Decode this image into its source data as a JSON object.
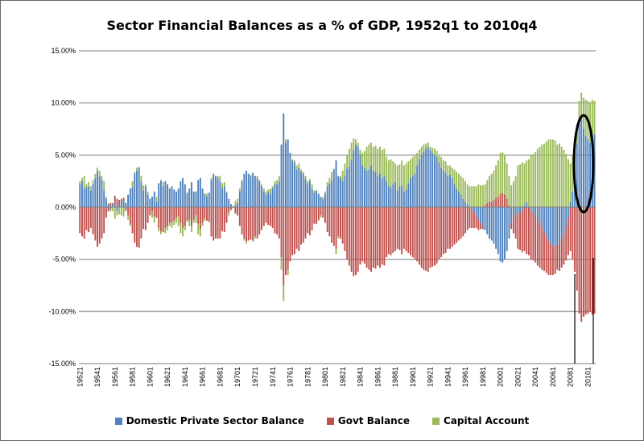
{
  "chart_data": {
    "type": "bar",
    "stacked": true,
    "title": "Sector Financial Balances as a % of GDP, 1952q1 to 2010q4",
    "xlabel": "",
    "ylabel": "",
    "ylim": [
      -15,
      15
    ],
    "y_ticks": [
      "15.00%",
      "10.00%",
      "5.00%",
      "0.00%",
      "-5.00%",
      "-10.00%",
      "-15.00%"
    ],
    "y_tick_values": [
      15,
      10,
      5,
      0,
      -5,
      -10,
      -15
    ],
    "grid": true,
    "legend_position": "bottom",
    "start_period": "1952q1",
    "x_tick_labels": [
      "19521",
      "19541",
      "19561",
      "19581",
      "19601",
      "19621",
      "19641",
      "19661",
      "19681",
      "19701",
      "19721",
      "19741",
      "19761",
      "19781",
      "19801",
      "19821",
      "19841",
      "19861",
      "19881",
      "19901",
      "19921",
      "19941",
      "19961",
      "19981",
      "20001",
      "20021",
      "20041",
      "20061",
      "20081",
      "20101"
    ],
    "series": [
      {
        "name": "Domestic Private Sector Balance",
        "color": "#4f81bd",
        "values": [
          2.2,
          2.5,
          1.8,
          1.9,
          2.0,
          1.6,
          2.2,
          2.8,
          3.5,
          3.0,
          2.6,
          1.6,
          0.8,
          0.3,
          -0.2,
          0.2,
          0.5,
          -0.4,
          0.2,
          0.6,
          0.7,
          0.4,
          1.2,
          1.8,
          1.9,
          3.2,
          3.5,
          3.8,
          2.5,
          1.6,
          2.0,
          1.2,
          0.8,
          1.0,
          1.5,
          0.5,
          2.3,
          2.6,
          2.0,
          2.5,
          2.2,
          1.8,
          2.0,
          1.7,
          1.5,
          1.8,
          2.5,
          2.8,
          2.2,
          1.4,
          1.8,
          2.4,
          1.5,
          1.5,
          2.6,
          2.8,
          1.8,
          1.3,
          1.0,
          1.4,
          2.6,
          3.2,
          3.0,
          2.8,
          2.5,
          1.8,
          2.0,
          1.4,
          0.8,
          0.3,
          0.1,
          0.2,
          0.4,
          1.5,
          2.5,
          3.2,
          3.5,
          3.2,
          3.0,
          3.3,
          3.0,
          2.8,
          2.5,
          2.0,
          1.5,
          1.2,
          1.5,
          1.3,
          1.8,
          2.2,
          2.2,
          2.5,
          6.0,
          9.0,
          6.2,
          6.5,
          5.2,
          4.5,
          4.3,
          3.6,
          3.8,
          3.4,
          3.2,
          2.7,
          2.2,
          2.5,
          1.8,
          1.4,
          1.6,
          1.3,
          1.0,
          0.8,
          1.3,
          2.0,
          2.3,
          2.6,
          3.6,
          4.5,
          3.0,
          2.8,
          2.5,
          3.0,
          3.7,
          3.9,
          4.5,
          5.5,
          6.0,
          5.8,
          5.0,
          4.0,
          3.8,
          3.5,
          3.6,
          4.0,
          3.5,
          3.4,
          3.0,
          3.2,
          2.8,
          3.0,
          2.5,
          2.0,
          1.9,
          2.2,
          2.4,
          1.6,
          2.0,
          2.1,
          1.5,
          1.7,
          2.3,
          2.8,
          3.0,
          3.2,
          4.0,
          4.6,
          5.0,
          5.3,
          5.6,
          5.8,
          5.5,
          5.2,
          5.0,
          4.8,
          4.3,
          3.8,
          3.5,
          3.3,
          3.0,
          3.1,
          2.8,
          2.2,
          1.8,
          1.5,
          1.2,
          0.8,
          0.5,
          0.3,
          0.0,
          -0.2,
          -0.5,
          -0.8,
          -1.2,
          -1.5,
          -1.8,
          -2.2,
          -2.6,
          -3.0,
          -3.2,
          -3.5,
          -4.0,
          -4.5,
          -5.2,
          -5.3,
          -5.0,
          -4.2,
          -3.0,
          -1.6,
          -1.0,
          -0.5,
          -0.8,
          -0.5,
          -0.3,
          0.2,
          0.5,
          0.1,
          -0.2,
          -0.5,
          -0.8,
          -1.2,
          -1.5,
          -2.0,
          -2.4,
          -2.8,
          -3.2,
          -3.5,
          -3.7,
          -3.8,
          -3.6,
          -3.5,
          -3.0,
          -2.5,
          -1.8,
          -1.0,
          0.5,
          1.5,
          3.5,
          6.0,
          8.5,
          8.8,
          7.5,
          6.8,
          6.5,
          6.2,
          6.8,
          7.0
        ]
      },
      {
        "name": "Govt Balance",
        "color": "#c0504d",
        "values": [
          -2.5,
          -2.8,
          -3.0,
          -2.2,
          -2.4,
          -2.0,
          -2.6,
          -3.2,
          -3.8,
          -3.5,
          -3.0,
          -2.5,
          -1.0,
          -0.4,
          0.4,
          0.2,
          0.6,
          0.8,
          0.5,
          0.2,
          0.2,
          -0.3,
          -0.8,
          -1.6,
          -2.5,
          -3.4,
          -3.8,
          -3.9,
          -3.0,
          -2.1,
          -2.2,
          -1.5,
          -0.8,
          -0.4,
          -0.9,
          -1.0,
          -2.0,
          -2.3,
          -2.4,
          -2.0,
          -1.8,
          -1.5,
          -1.5,
          -1.3,
          -1.0,
          -0.9,
          -1.5,
          -2.0,
          -1.8,
          -1.3,
          -1.2,
          -1.8,
          -1.2,
          -0.8,
          -1.6,
          -2.1,
          -1.5,
          -1.1,
          -1.3,
          -1.4,
          -2.8,
          -3.2,
          -3.0,
          -3.0,
          -3.0,
          -2.3,
          -2.4,
          -1.5,
          -0.5,
          -0.2,
          0.0,
          -0.6,
          -0.8,
          -1.8,
          -2.6,
          -3.0,
          -3.3,
          -3.2,
          -3.1,
          -3.2,
          -2.8,
          -3.0,
          -2.6,
          -2.2,
          -1.8,
          -1.5,
          -1.7,
          -1.8,
          -2.0,
          -2.5,
          -2.6,
          -3.0,
          -4.8,
          -7.5,
          -6.5,
          -6.0,
          -5.2,
          -4.6,
          -4.5,
          -4.0,
          -4.2,
          -3.6,
          -3.4,
          -3.0,
          -2.5,
          -2.7,
          -2.2,
          -1.6,
          -1.6,
          -1.2,
          -0.8,
          -1.0,
          -1.5,
          -2.4,
          -2.8,
          -3.4,
          -3.7,
          -4.0,
          -2.8,
          -3.0,
          -3.5,
          -4.2,
          -5.0,
          -5.6,
          -6.2,
          -6.6,
          -6.5,
          -6.2,
          -5.5,
          -5.2,
          -5.4,
          -5.8,
          -6.0,
          -6.2,
          -5.8,
          -5.9,
          -5.6,
          -5.8,
          -5.5,
          -5.6,
          -4.8,
          -4.5,
          -4.6,
          -4.4,
          -4.2,
          -4.0,
          -4.1,
          -4.5,
          -4.0,
          -4.2,
          -4.4,
          -4.6,
          -4.8,
          -5.0,
          -5.2,
          -5.5,
          -5.8,
          -6.0,
          -6.1,
          -6.2,
          -5.8,
          -5.7,
          -5.6,
          -5.4,
          -5.0,
          -4.8,
          -4.5,
          -4.4,
          -4.0,
          -4.0,
          -3.8,
          -3.6,
          -3.4,
          -3.2,
          -3.0,
          -2.8,
          -2.5,
          -2.2,
          -2.0,
          -1.8,
          -1.5,
          -1.2,
          -1.0,
          -0.6,
          -0.3,
          0.2,
          0.4,
          0.5,
          0.5,
          0.7,
          0.9,
          1.0,
          1.3,
          1.4,
          1.2,
          0.8,
          0.2,
          -0.5,
          -1.5,
          -2.5,
          -3.2,
          -3.6,
          -4.0,
          -4.2,
          -4.5,
          -4.6,
          -4.8,
          -4.6,
          -4.5,
          -4.4,
          -4.3,
          -4.0,
          -3.7,
          -3.5,
          -3.3,
          -3.0,
          -2.8,
          -2.6,
          -2.4,
          -2.6,
          -2.8,
          -3.0,
          -3.3,
          -3.6,
          -4.2,
          -5.0,
          -6.2,
          -8.0,
          -10.2,
          -11.0,
          -10.5,
          -10.3,
          -10.2,
          -10.0,
          -10.3,
          -10.2
        ]
      },
      {
        "name": "Capital Account",
        "color": "#9bbb59",
        "values": [
          0.3,
          0.3,
          1.2,
          0.3,
          0.4,
          0.4,
          0.4,
          0.4,
          0.3,
          0.5,
          0.4,
          0.9,
          0.2,
          0.1,
          -0.2,
          -0.4,
          -1.1,
          -0.4,
          -0.7,
          -0.8,
          -0.9,
          -0.1,
          -0.4,
          -0.2,
          0.6,
          0.2,
          0.3,
          0.1,
          0.5,
          0.5,
          0.2,
          0.3,
          0.0,
          -0.6,
          -0.6,
          0.5,
          -0.3,
          -0.3,
          0.4,
          -0.5,
          -0.4,
          -0.3,
          -0.5,
          -0.4,
          -0.5,
          -0.9,
          -1.0,
          -0.8,
          -0.4,
          -0.1,
          -0.6,
          -0.6,
          -0.3,
          -0.7,
          -1.0,
          -0.7,
          -0.3,
          -0.2,
          0.3,
          0.0,
          0.2,
          0.0,
          0.0,
          0.2,
          0.5,
          0.5,
          0.4,
          0.1,
          -0.3,
          -0.1,
          -0.1,
          0.4,
          0.4,
          0.3,
          0.1,
          -0.2,
          -0.2,
          0.0,
          0.1,
          -0.1,
          -0.2,
          0.2,
          0.1,
          0.2,
          0.3,
          0.3,
          0.2,
          0.5,
          0.2,
          0.3,
          0.4,
          0.5,
          -1.2,
          -1.5,
          0.3,
          -0.5,
          0.0,
          0.1,
          0.2,
          0.4,
          0.4,
          0.2,
          0.2,
          0.3,
          0.3,
          0.2,
          0.4,
          0.2,
          0.0,
          -0.1,
          -0.2,
          0.2,
          0.2,
          0.4,
          0.5,
          0.8,
          0.1,
          -0.5,
          -0.2,
          0.2,
          1.0,
          1.2,
          1.3,
          1.7,
          1.7,
          1.1,
          0.5,
          0.4,
          0.5,
          1.2,
          1.6,
          2.3,
          2.4,
          2.2,
          2.3,
          2.5,
          2.6,
          2.6,
          2.7,
          2.6,
          2.3,
          2.5,
          2.7,
          2.2,
          1.8,
          2.4,
          2.1,
          2.4,
          2.5,
          2.5,
          2.1,
          1.8,
          1.8,
          1.8,
          1.2,
          0.9,
          0.8,
          0.7,
          0.5,
          0.4,
          0.3,
          0.5,
          0.6,
          0.6,
          0.7,
          1.0,
          1.0,
          1.1,
          1.0,
          0.9,
          1.0,
          1.4,
          1.6,
          1.7,
          1.8,
          2.0,
          2.0,
          1.9,
          2.0,
          2.0,
          2.0,
          2.0,
          2.2,
          2.1,
          2.1,
          2.0,
          2.2,
          2.5,
          2.7,
          2.8,
          3.1,
          3.5,
          3.9,
          3.9,
          3.8,
          3.4,
          2.8,
          2.1,
          2.5,
          3.0,
          4.0,
          4.1,
          4.3,
          4.0,
          4.0,
          4.5,
          5.0,
          5.1,
          5.3,
          5.6,
          5.8,
          6.0,
          6.1,
          6.3,
          6.5,
          6.5,
          6.5,
          6.4,
          6.0,
          6.1,
          5.8,
          5.5,
          5.1,
          4.6,
          3.7,
          3.5,
          2.7,
          2.0,
          1.7,
          2.2,
          3.0,
          3.5,
          3.7,
          3.8,
          3.5,
          3.2
        ]
      }
    ],
    "annotations": [
      "hand-drawn ellipse around 2009-2010 private sector bars",
      "hand-drawn box lines below 2009-2010 bars"
    ]
  }
}
